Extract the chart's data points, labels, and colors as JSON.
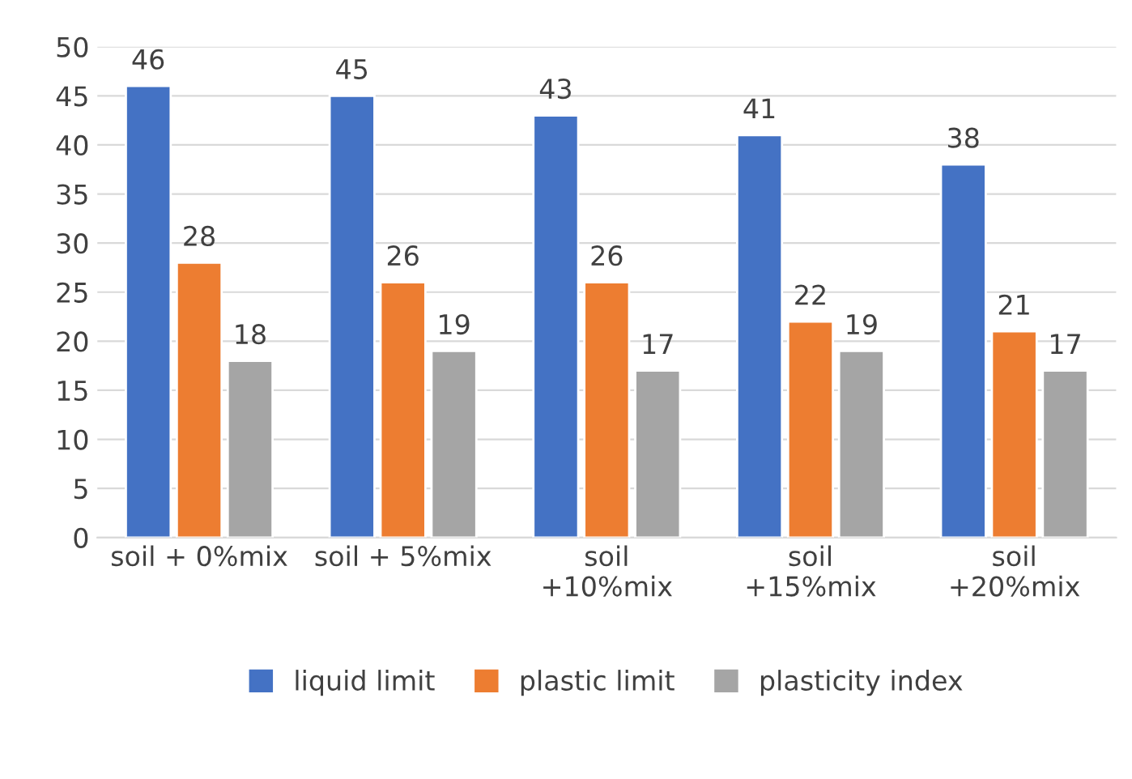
{
  "chart_data": {
    "type": "bar",
    "categories": [
      "soil + 0%mix",
      "soil + 5%mix",
      "soil\n+10%mix",
      "soil\n+15%mix",
      "soil\n+20%mix"
    ],
    "series": [
      {
        "name": "liquid limit",
        "color": "#4472c4",
        "values": [
          46,
          45,
          43,
          41,
          38
        ]
      },
      {
        "name": "plastic limit",
        "color": "#ed7d31",
        "values": [
          28,
          26,
          26,
          22,
          21
        ]
      },
      {
        "name": "plasticity index",
        "color": "#a5a5a5",
        "values": [
          18,
          19,
          17,
          19,
          17
        ]
      }
    ],
    "ylim": [
      0,
      50
    ],
    "yticks": [
      0,
      5,
      10,
      15,
      20,
      25,
      30,
      35,
      40,
      45,
      50
    ],
    "grid": "y",
    "legend": "bottom",
    "data_labels": true
  }
}
